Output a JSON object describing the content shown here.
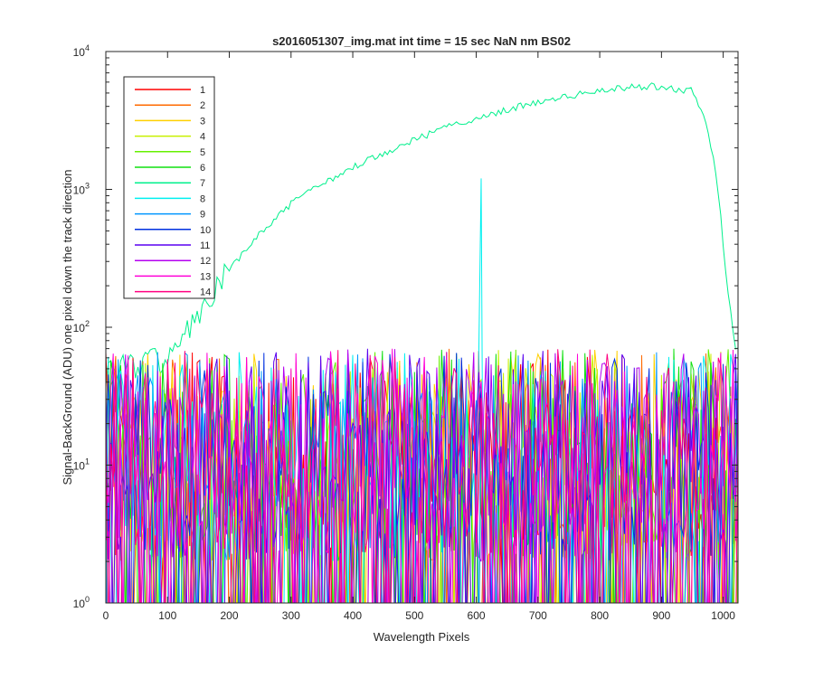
{
  "chart_data": {
    "type": "line",
    "title": "s2016051307_img.mat int time = 15 sec  NaN nm BS02",
    "xlabel": "Wavelength Pixels",
    "ylabel": "Signal-BackGround (ADU) one pixel down the track direction",
    "xlim": [
      0,
      1024
    ],
    "ylim": [
      1,
      10000
    ],
    "yscale": "log",
    "x_ticks": [
      "0",
      "100",
      "200",
      "300",
      "400",
      "500",
      "600",
      "700",
      "800",
      "900",
      "1000"
    ],
    "y_ticks": [
      {
        "base": "10",
        "exp": "0"
      },
      {
        "base": "10",
        "exp": "1"
      },
      {
        "base": "10",
        "exp": "2"
      },
      {
        "base": "10",
        "exp": "3"
      },
      {
        "base": "10",
        "exp": "4"
      }
    ],
    "grid": false,
    "legend_position": "top-left",
    "series": [
      {
        "name": "1",
        "color": "#ff0000",
        "kind": "noise"
      },
      {
        "name": "2",
        "color": "#ff6a00",
        "kind": "noise"
      },
      {
        "name": "3",
        "color": "#ffd000",
        "kind": "noise"
      },
      {
        "name": "4",
        "color": "#c8f000",
        "kind": "noise"
      },
      {
        "name": "5",
        "color": "#66f000",
        "kind": "noise"
      },
      {
        "name": "6",
        "color": "#10e010",
        "kind": "noise"
      },
      {
        "name": "7",
        "color": "#00f08c",
        "kind": "signal",
        "profile": [
          [
            0,
            50
          ],
          [
            50,
            55
          ],
          [
            100,
            60
          ],
          [
            150,
            120
          ],
          [
            200,
            260
          ],
          [
            250,
            480
          ],
          [
            300,
            780
          ],
          [
            350,
            1100
          ],
          [
            400,
            1450
          ],
          [
            450,
            1850
          ],
          [
            500,
            2300
          ],
          [
            550,
            2800
          ],
          [
            600,
            3300
          ],
          [
            650,
            3800
          ],
          [
            700,
            4300
          ],
          [
            750,
            4750
          ],
          [
            800,
            5150
          ],
          [
            850,
            5500
          ],
          [
            880,
            5650
          ],
          [
            920,
            5400
          ],
          [
            950,
            5200
          ],
          [
            970,
            3500
          ],
          [
            990,
            1200
          ],
          [
            1000,
            400
          ],
          [
            1010,
            150
          ],
          [
            1020,
            70
          ]
        ]
      },
      {
        "name": "8",
        "color": "#00f0f0",
        "kind": "noise",
        "spike": {
          "x": 607,
          "y": 1200
        }
      },
      {
        "name": "9",
        "color": "#0096ff",
        "kind": "noise"
      },
      {
        "name": "10",
        "color": "#0030e0",
        "kind": "noise"
      },
      {
        "name": "11",
        "color": "#5a00f0",
        "kind": "noise"
      },
      {
        "name": "12",
        "color": "#b400f0",
        "kind": "noise"
      },
      {
        "name": "13",
        "color": "#ff00d8",
        "kind": "noise"
      },
      {
        "name": "14",
        "color": "#ff0080",
        "kind": "noise"
      }
    ]
  }
}
